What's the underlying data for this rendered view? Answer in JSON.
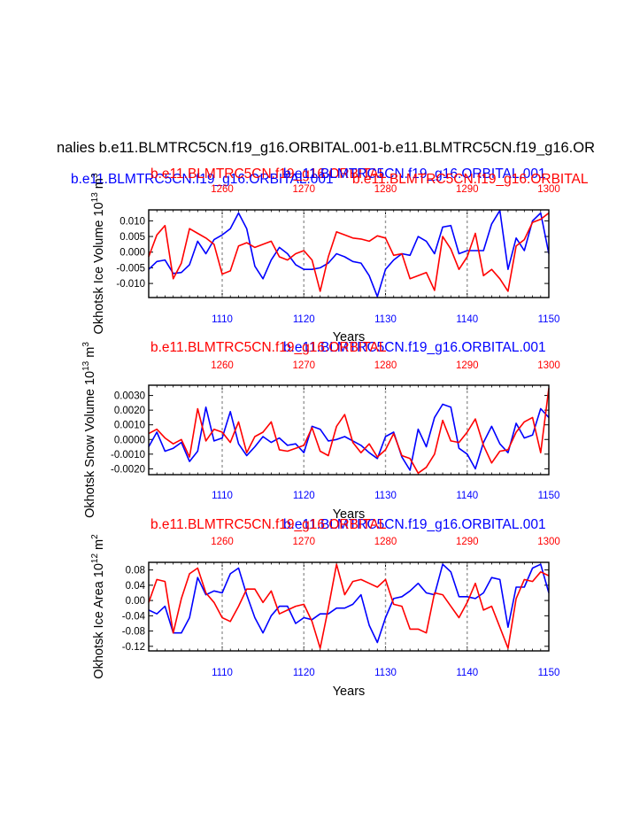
{
  "page_title": "nalies b.e11.BLMTRC5CN.f19_g16.ORBITAL.001-b.e11.BLMTRC5CN.f19_g16.OR",
  "colors": {
    "blue": "#0000ff",
    "red": "#ff0000",
    "grid": "#999999",
    "axis": "#000000"
  },
  "legend": {
    "blue_label": "b.e11.BLMTRC5CN.f19_g16.ORBITAL.001",
    "red_label": "b.e11.BLMTRC5CN.f19_g16.ORBITAL"
  },
  "bottom_ticks": [
    "1110",
    "1120",
    "1130",
    "1140",
    "1150"
  ],
  "top_ticks": [
    "1260",
    "1270",
    "1280",
    "1290",
    "1300"
  ],
  "chart_data": [
    {
      "type": "line",
      "id": "p1",
      "ylabel_main": "Okhotsk Ice Volume 10",
      "ylabel_exp": "13",
      "ylabel_unit": " m",
      "ylabel_unit_exp": "3",
      "xlabel": "Years",
      "xlim": [
        1101,
        1150
      ],
      "top_xlim": [
        1251,
        1300
      ],
      "ylim": [
        -0.0145,
        0.0135
      ],
      "yticks": [
        0.01,
        0.005,
        0.0,
        -0.005,
        -0.01
      ],
      "ytick_labels": [
        "0.010",
        "0.005",
        "0.000",
        "-0.005",
        "-0.010"
      ],
      "grid_x": [
        1110,
        1120,
        1130,
        1140
      ],
      "series": [
        {
          "name": "b.e11.BLMTRC5CN.f19_g16.ORBITAL.001",
          "color": "#0000ff",
          "x_start": 1101,
          "values": [
            -0.0055,
            -0.003,
            -0.0025,
            -0.0068,
            -0.0065,
            -0.004,
            0.0035,
            -0.0005,
            0.004,
            0.0055,
            0.0075,
            0.0125,
            0.0075,
            -0.0045,
            -0.0085,
            -0.0025,
            0.0015,
            -0.0005,
            -0.004,
            -0.0055,
            -0.0055,
            -0.005,
            -0.0035,
            -0.0005,
            -0.0015,
            -0.003,
            -0.0035,
            -0.0075,
            -0.0142,
            -0.0055,
            -0.0025,
            -0.0005,
            -0.001,
            0.005,
            0.0035,
            -0.0005,
            0.008,
            0.0085,
            -0.0005,
            0.0005,
            0.0005,
            0.0005,
            0.009,
            0.0133,
            -0.0055,
            0.0045,
            0.0005,
            0.01,
            0.0125,
            -0.0005
          ]
        },
        {
          "name": "b.e11.BLMTRC5CN.f19_g16.ORBITAL",
          "color": "#ff0000",
          "x_start": 1101,
          "values": [
            -0.0015,
            0.0055,
            0.0085,
            -0.0085,
            -0.0035,
            0.0075,
            0.006,
            0.0045,
            0.0025,
            -0.007,
            -0.006,
            0.002,
            0.003,
            0.0015,
            0.0025,
            0.0035,
            -0.0015,
            -0.0025,
            -0.0005,
            0.0005,
            -0.0025,
            -0.0125,
            -0.0015,
            0.0065,
            0.0055,
            0.0045,
            0.0042,
            0.0035,
            0.0052,
            0.0045,
            -0.001,
            -0.0005,
            -0.0085,
            -0.0075,
            -0.0065,
            -0.0122,
            0.005,
            0.001,
            -0.0055,
            -0.0015,
            0.006,
            -0.0075,
            -0.0055,
            -0.0085,
            -0.0125,
            0.002,
            0.004,
            0.0095,
            0.0105,
            0.0125
          ]
        }
      ]
    },
    {
      "type": "line",
      "id": "p2",
      "ylabel_main": "Okhotsk Snow Volume 10",
      "ylabel_exp": "13",
      "ylabel_unit": " m",
      "ylabel_unit_exp": "3",
      "xlabel": "Years",
      "xlim": [
        1101,
        1150
      ],
      "top_xlim": [
        1251,
        1300
      ],
      "ylim": [
        -0.0024,
        0.0037
      ],
      "yticks": [
        0.003,
        0.002,
        0.001,
        0.0,
        -0.001,
        -0.002
      ],
      "ytick_labels": [
        "0.0030",
        "0.0020",
        "0.0010",
        "0.0000",
        "-0.0010",
        "-0.0020"
      ],
      "grid_x": [
        1110,
        1120,
        1130,
        1140
      ],
      "series": [
        {
          "name": "b.e11.BLMTRC5CN.f19_g16.ORBITAL.001",
          "color": "#0000ff",
          "x_start": 1101,
          "values": [
            -0.0005,
            0.0005,
            -0.0008,
            -0.0006,
            -0.0002,
            -0.0015,
            -0.0008,
            0.0022,
            -0.0001,
            0.0001,
            0.0019,
            -0.0003,
            -0.0011,
            -0.0005,
            0.0002,
            -0.0002,
            0.0001,
            -0.0004,
            -0.0003,
            -0.0009,
            0.0009,
            0.0007,
            -0.0001,
            0.0,
            0.0002,
            -0.0001,
            -0.0004,
            -0.0009,
            -0.0013,
            0.0002,
            0.0005,
            -0.0012,
            -0.0021,
            0.0007,
            -0.0005,
            0.0015,
            0.0024,
            0.0022,
            -0.0006,
            -0.001,
            -0.002,
            -0.0002,
            0.0009,
            -0.0003,
            -0.0009,
            0.0011,
            0.0001,
            0.0003,
            0.0021,
            0.0015
          ]
        },
        {
          "name": "b.e11.BLMTRC5CN.f19_g16.ORBITAL",
          "color": "#ff0000",
          "x_start": 1101,
          "values": [
            0.0004,
            0.0007,
            0.0001,
            -0.0003,
            0.0,
            -0.0012,
            0.0021,
            -0.0001,
            0.0007,
            0.0005,
            -0.0002,
            0.0012,
            -0.0009,
            0.0002,
            0.0005,
            0.0012,
            -0.0007,
            -0.0008,
            -0.0006,
            -0.0004,
            0.0008,
            -0.0008,
            -0.0011,
            0.0009,
            0.0017,
            -0.0002,
            -0.0009,
            -0.0003,
            -0.0012,
            -0.0007,
            0.0004,
            -0.0011,
            -0.0013,
            -0.0023,
            -0.0019,
            -0.001,
            0.0013,
            -0.0001,
            -0.0002,
            0.0005,
            0.0014,
            -0.0004,
            -0.0016,
            -0.0008,
            -0.0007,
            0.0005,
            0.0012,
            0.0015,
            -0.0009,
            0.0035
          ]
        }
      ]
    },
    {
      "type": "line",
      "id": "p3",
      "ylabel_main": "Okhotsk Ice Area 10",
      "ylabel_exp": "12",
      "ylabel_unit": " m",
      "ylabel_unit_exp": "2",
      "xlabel": "Years",
      "xlim": [
        1101,
        1150
      ],
      "top_xlim": [
        1251,
        1300
      ],
      "ylim": [
        -0.132,
        0.1
      ],
      "yticks": [
        0.08,
        0.04,
        0.0,
        -0.04,
        -0.08,
        -0.12
      ],
      "ytick_labels": [
        "0.08",
        "0.04",
        "0.00",
        "-0.04",
        "-0.08",
        "-0.12"
      ],
      "grid_x": [
        1110,
        1120,
        1130,
        1140
      ],
      "series": [
        {
          "name": "b.e11.BLMTRC5CN.f19_g16.ORBITAL.001",
          "color": "#0000ff",
          "x_start": 1101,
          "values": [
            -0.025,
            -0.035,
            -0.015,
            -0.085,
            -0.085,
            -0.045,
            0.06,
            0.015,
            0.025,
            0.02,
            0.07,
            0.085,
            0.015,
            -0.045,
            -0.085,
            -0.04,
            -0.015,
            -0.015,
            -0.06,
            -0.045,
            -0.05,
            -0.035,
            -0.035,
            -0.02,
            -0.02,
            -0.01,
            0.015,
            -0.065,
            -0.11,
            -0.045,
            0.005,
            0.01,
            0.025,
            0.045,
            0.02,
            0.015,
            0.095,
            0.075,
            0.01,
            0.01,
            0.005,
            0.02,
            0.06,
            0.055,
            -0.07,
            0.035,
            0.035,
            0.085,
            0.095,
            0.02
          ]
        },
        {
          "name": "b.e11.BLMTRC5CN.f19_g16.ORBITAL",
          "color": "#ff0000",
          "x_start": 1101,
          "values": [
            -0.005,
            0.055,
            0.05,
            -0.085,
            0.005,
            0.07,
            0.085,
            0.02,
            -0.005,
            -0.045,
            -0.055,
            -0.015,
            0.03,
            0.03,
            -0.005,
            0.025,
            -0.035,
            -0.025,
            -0.015,
            -0.01,
            -0.055,
            -0.125,
            -0.02,
            0.095,
            0.015,
            0.05,
            0.055,
            0.045,
            0.035,
            0.055,
            -0.01,
            -0.015,
            -0.075,
            -0.075,
            -0.085,
            0.02,
            0.015,
            -0.015,
            -0.045,
            -0.005,
            0.045,
            -0.025,
            -0.015,
            -0.07,
            -0.125,
            0.005,
            0.055,
            0.05,
            0.075,
            0.065
          ]
        }
      ]
    }
  ]
}
